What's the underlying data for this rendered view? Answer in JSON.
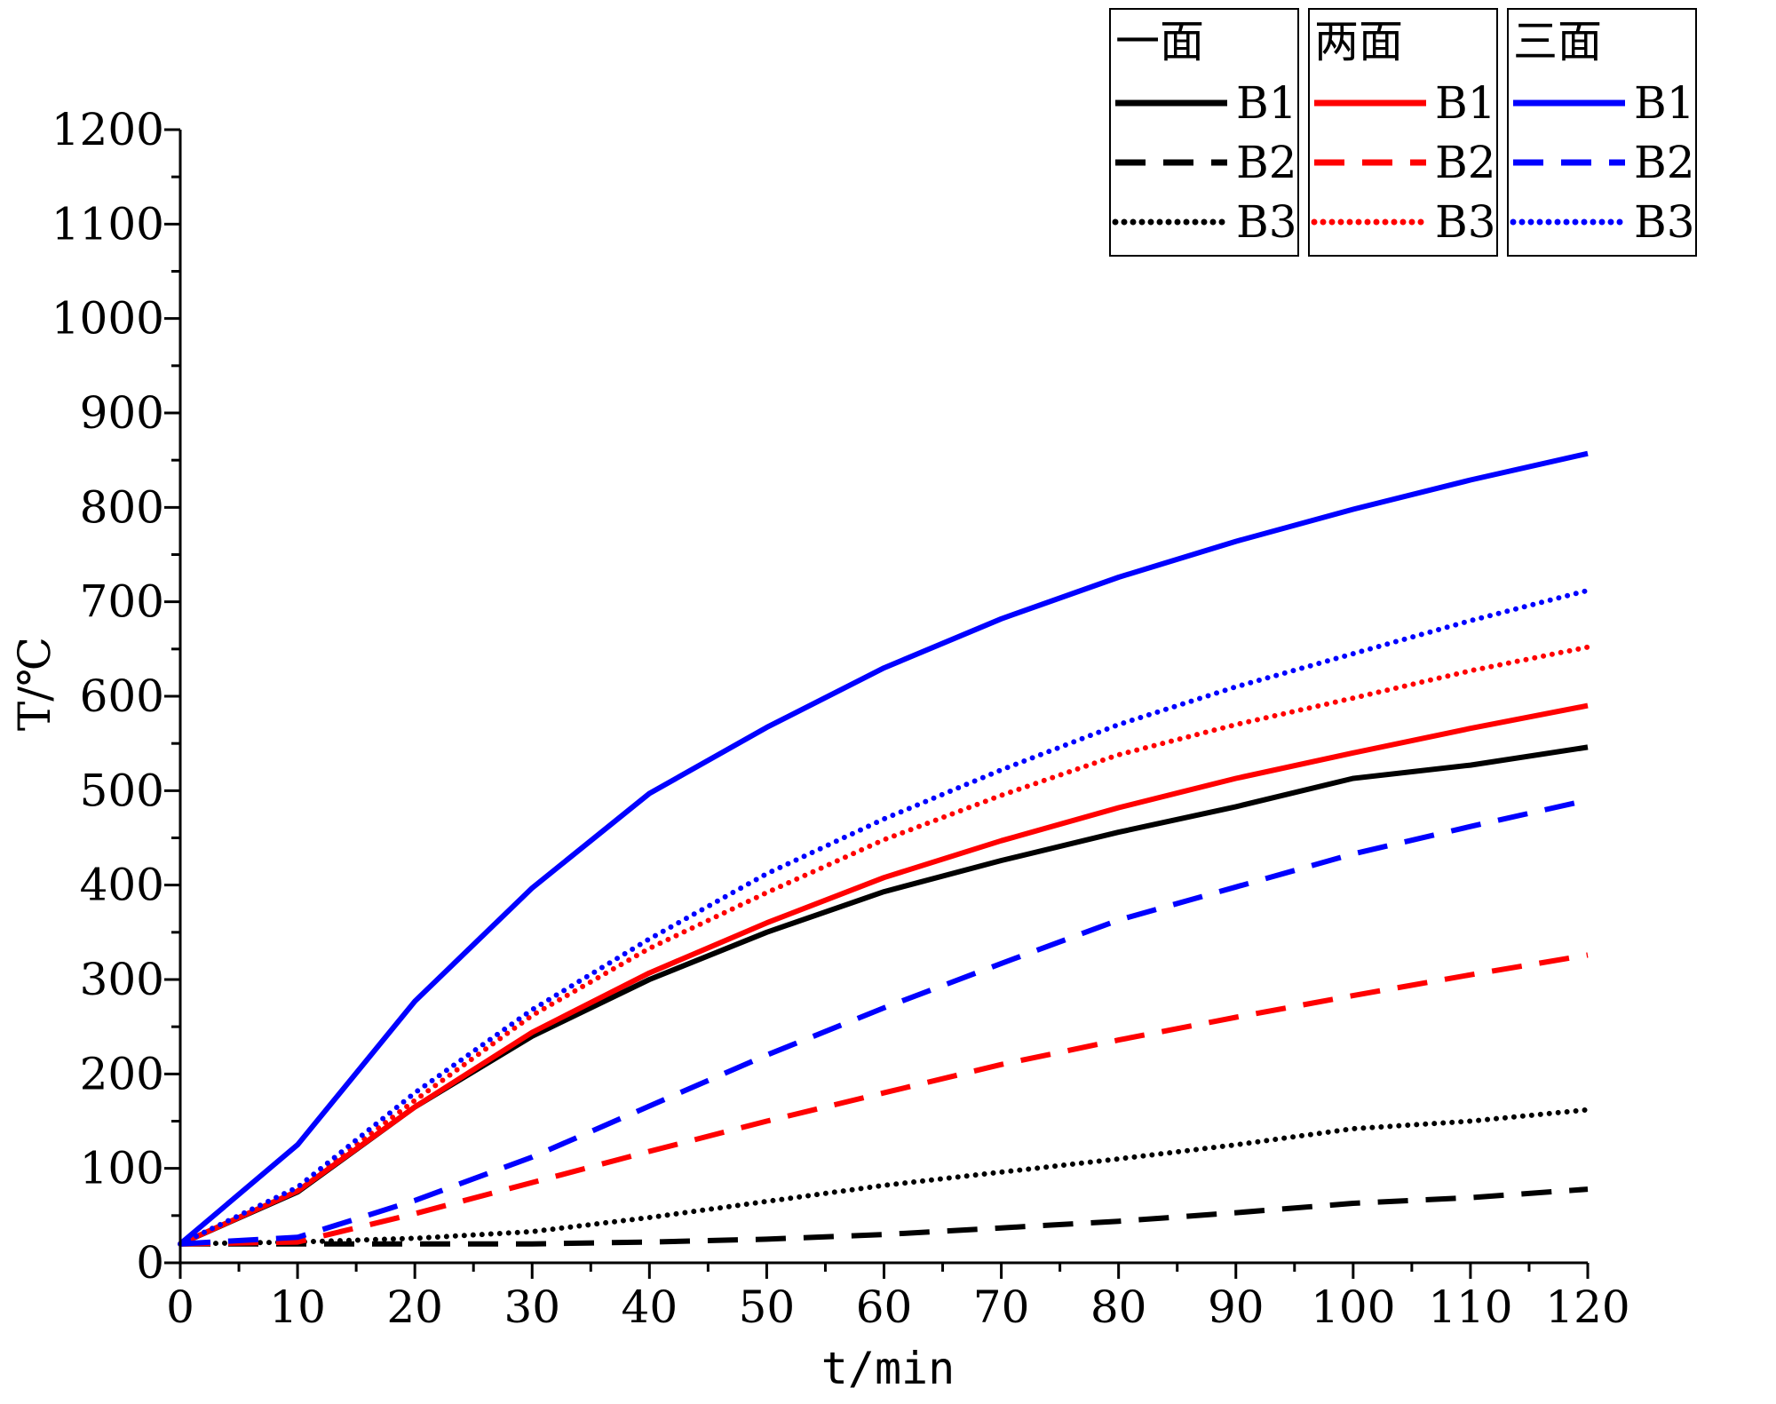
{
  "chart_data": {
    "type": "line",
    "xlabel": "t/min",
    "ylabel": "T/℃",
    "xlim": [
      0,
      120
    ],
    "ylim": [
      0,
      1200
    ],
    "xticks": [
      0,
      10,
      20,
      30,
      40,
      50,
      60,
      70,
      80,
      90,
      100,
      110,
      120
    ],
    "yticks": [
      0,
      100,
      200,
      300,
      400,
      500,
      600,
      700,
      800,
      900,
      1000,
      1100,
      1200
    ],
    "x": [
      0,
      10,
      20,
      30,
      40,
      50,
      60,
      70,
      80,
      90,
      100,
      110,
      120
    ],
    "grid": false,
    "legend_position": "top-right",
    "groups": [
      {
        "name": "一面",
        "color": "#000000"
      },
      {
        "name": "两面",
        "color": "#ff0000"
      },
      {
        "name": "三面",
        "color": "#0000ff"
      }
    ],
    "series": [
      {
        "group": "一面",
        "name": "B1",
        "style": "solid",
        "color": "#000000",
        "values": [
          20,
          75,
          165,
          240,
          300,
          350,
          393,
          426,
          456,
          483,
          513,
          527,
          546
        ]
      },
      {
        "group": "一面",
        "name": "B2",
        "style": "dashed",
        "color": "#000000",
        "values": [
          20,
          20,
          20,
          20,
          22,
          25,
          30,
          37,
          44,
          53,
          63,
          69,
          78
        ]
      },
      {
        "group": "一面",
        "name": "B3",
        "style": "dotted",
        "color": "#000000",
        "values": [
          20,
          22,
          26,
          33,
          48,
          65,
          82,
          96,
          110,
          125,
          142,
          150,
          162
        ]
      },
      {
        "group": "两面",
        "name": "B1",
        "style": "solid",
        "color": "#ff0000",
        "values": [
          20,
          76,
          165,
          244,
          307,
          360,
          408,
          447,
          482,
          513,
          540,
          566,
          590
        ]
      },
      {
        "group": "两面",
        "name": "B2",
        "style": "dashed",
        "color": "#ff0000",
        "values": [
          20,
          22,
          52,
          85,
          118,
          150,
          180,
          210,
          236,
          260,
          283,
          305,
          326
        ]
      },
      {
        "group": "两面",
        "name": "B3",
        "style": "dotted",
        "color": "#ff0000",
        "values": [
          20,
          78,
          172,
          262,
          333,
          392,
          448,
          495,
          538,
          570,
          598,
          627,
          652
        ]
      },
      {
        "group": "三面",
        "name": "B1",
        "style": "solid",
        "color": "#0000ff",
        "values": [
          20,
          125,
          277,
          397,
          497,
          567,
          630,
          682,
          726,
          764,
          798,
          829,
          857
        ]
      },
      {
        "group": "三面",
        "name": "B2",
        "style": "dashed",
        "color": "#0000ff",
        "values": [
          20,
          27,
          66,
          112,
          166,
          220,
          270,
          317,
          363,
          398,
          433,
          462,
          490
        ]
      },
      {
        "group": "三面",
        "name": "B3",
        "style": "dotted",
        "color": "#0000ff",
        "values": [
          20,
          80,
          180,
          268,
          343,
          412,
          470,
          522,
          570,
          610,
          645,
          680,
          712
        ]
      }
    ]
  }
}
